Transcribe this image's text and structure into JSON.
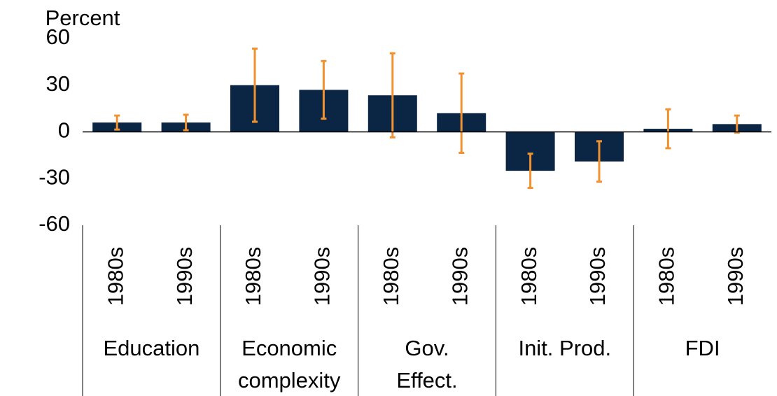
{
  "chart_data": {
    "type": "bar",
    "y_label": "Percent",
    "categories": [
      "1980s",
      "1990s",
      "1980s",
      "1990s",
      "1980s",
      "1990s",
      "1980s",
      "1990s",
      "1980s",
      "1990s"
    ],
    "groups": [
      [
        "Education"
      ],
      [
        "Economic",
        "complexity"
      ],
      [
        "Gov.",
        "Effect."
      ],
      [
        "Init. Prod."
      ],
      [
        "FDI"
      ]
    ],
    "values": [
      6,
      6,
      30,
      27,
      23.5,
      12,
      -25,
      -19,
      2,
      5
    ],
    "errors": [
      4.5,
      5,
      23.5,
      18.5,
      27,
      25.5,
      11,
      13,
      12.5,
      5.5
    ],
    "color": "#0b2545",
    "error_color": "#f0922f",
    "ylim": [
      -60,
      60
    ],
    "yticks": [
      -60,
      -30,
      0,
      30,
      60
    ],
    "grid": false
  }
}
